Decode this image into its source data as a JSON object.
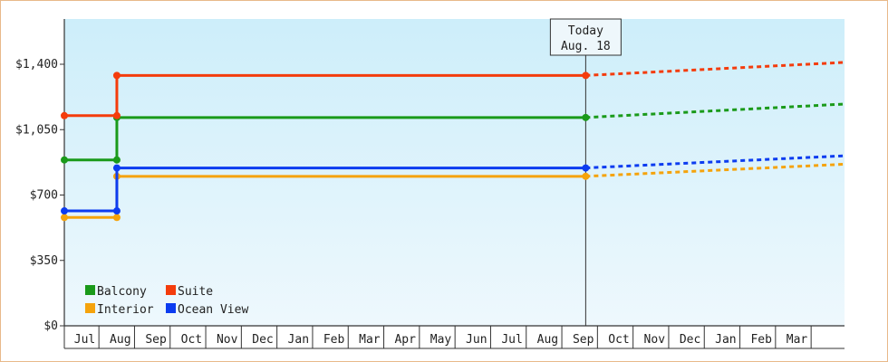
{
  "chart_data": {
    "type": "line",
    "y_axis": {
      "min": 0,
      "max": 1400,
      "ticks": [
        0,
        350,
        700,
        1050,
        1400
      ],
      "tick_labels": [
        "$0",
        "$350",
        "$700",
        "$1,050",
        "$1,400"
      ]
    },
    "x_axis": {
      "tick_labels": [
        "Jul",
        "Aug",
        "Sep",
        "Oct",
        "Nov",
        "Dec",
        "Jan",
        "Feb",
        "Mar",
        "Apr",
        "May",
        "Jun",
        "Jul",
        "Aug",
        "Sep",
        "Oct",
        "Nov",
        "Dec",
        "Jan",
        "Feb",
        "Mar"
      ]
    },
    "today_marker": {
      "line1": "Today",
      "line2": "Aug. 18",
      "x": 13.5
    },
    "x_range": [
      -0.4,
      20.4
    ],
    "series": [
      {
        "name": "Balcony",
        "color": "#1a9a1a",
        "actual": [
          [
            -0.4,
            888
          ],
          [
            1,
            888
          ],
          [
            1,
            1115
          ],
          [
            13.5,
            1115
          ]
        ],
        "forecast": [
          [
            13.5,
            1115
          ],
          [
            20.4,
            1187
          ]
        ]
      },
      {
        "name": "Suite",
        "color": "#f43c0c",
        "actual": [
          [
            -0.4,
            1125
          ],
          [
            1,
            1125
          ],
          [
            1,
            1340
          ],
          [
            13.5,
            1340
          ]
        ],
        "forecast": [
          [
            13.5,
            1340
          ],
          [
            20.4,
            1410
          ]
        ]
      },
      {
        "name": "Interior",
        "color": "#f5a30c",
        "actual": [
          [
            -0.4,
            580
          ],
          [
            1,
            580
          ],
          [
            1,
            800
          ],
          [
            13.5,
            800
          ]
        ],
        "forecast": [
          [
            13.5,
            800
          ],
          [
            20.4,
            865
          ]
        ]
      },
      {
        "name": "Ocean View",
        "color": "#0c3cf0",
        "actual": [
          [
            -0.4,
            615
          ],
          [
            1,
            615
          ],
          [
            1,
            845
          ],
          [
            13.5,
            845
          ]
        ],
        "forecast": [
          [
            13.5,
            845
          ],
          [
            20.4,
            910
          ]
        ]
      }
    ],
    "legend": {
      "placement": "bottom-left",
      "order": [
        "Balcony",
        "Suite",
        "Interior",
        "Ocean View"
      ]
    },
    "grid": false,
    "background_gradient": [
      "#cdeefa",
      "#eef8fd"
    ]
  }
}
